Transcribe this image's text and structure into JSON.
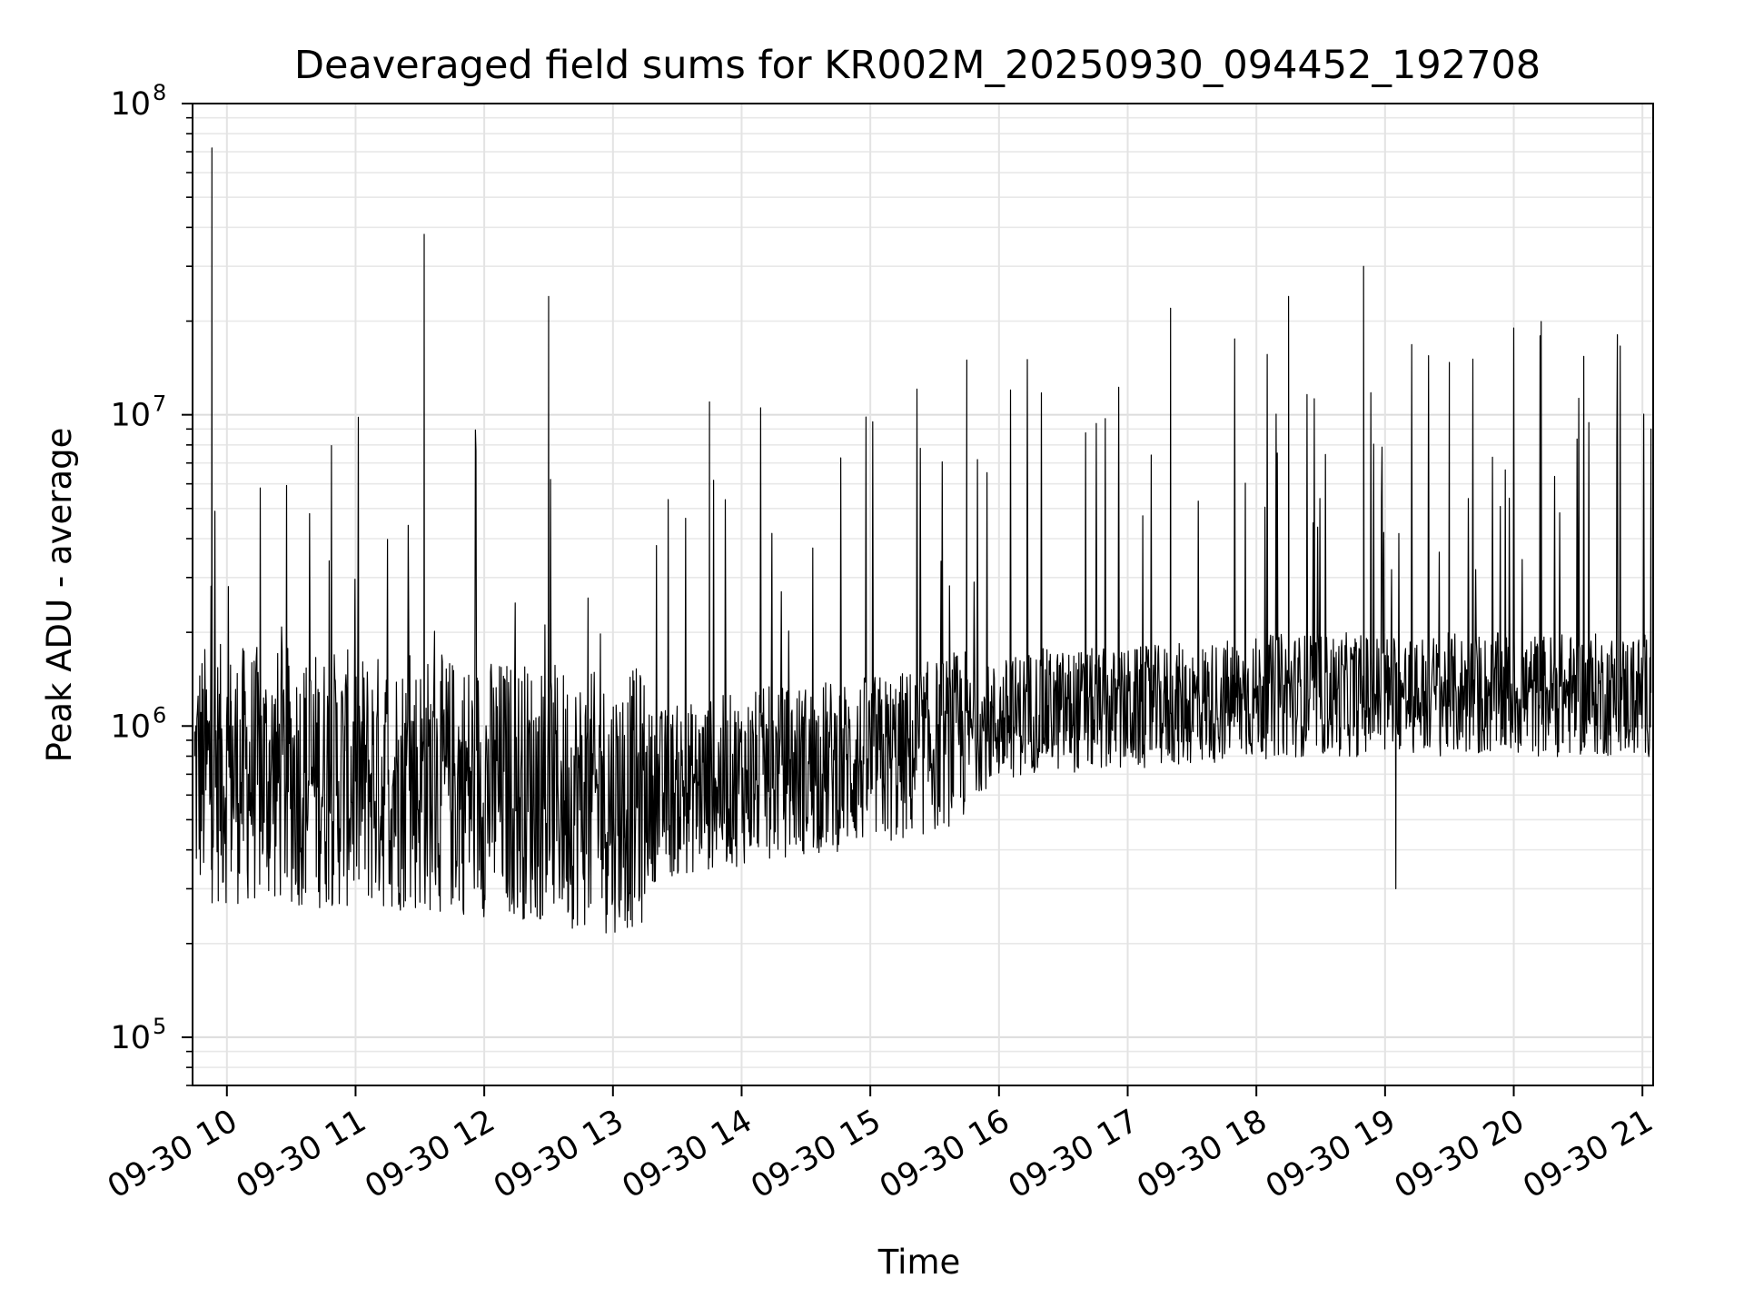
{
  "chart_data": {
    "type": "line",
    "title": "Deaveraged field sums for KR002M_20250930_094452_192708",
    "xlabel": "Time",
    "ylabel": "Peak ADU - average",
    "yscale": "log",
    "xlim": [
      "2025-09-30 09:44",
      "2025-09-30 21:05"
    ],
    "ylim": [
      70000,
      100000000
    ],
    "grid": true,
    "line_color": "#000000",
    "x_tick_labels": [
      "09-30 10",
      "09-30 11",
      "09-30 12",
      "09-30 13",
      "09-30 14",
      "09-30 15",
      "09-30 16",
      "09-30 17",
      "09-30 18",
      "09-30 19",
      "09-30 20",
      "09-30 21"
    ],
    "y_tick_labels": [
      {
        "base": "10",
        "exp": "5",
        "value": 100000
      },
      {
        "base": "10",
        "exp": "6",
        "value": 1000000
      },
      {
        "base": "10",
        "exp": "7",
        "value": 10000000
      },
      {
        "base": "10",
        "exp": "8",
        "value": 100000000
      }
    ],
    "series": [
      {
        "x": [
          "2025-09-30 09:45",
          "2025-09-30 09:50",
          "2025-09-30 09:53",
          "2025-09-30 09:56",
          "2025-09-30 10:02",
          "2025-09-30 10:10",
          "2025-09-30 10:20",
          "2025-09-30 10:30",
          "2025-09-30 10:38",
          "2025-09-30 10:45",
          "2025-09-30 10:55",
          "2025-09-30 11:05",
          "2025-09-30 11:20",
          "2025-09-30 11:32",
          "2025-09-30 11:40",
          "2025-09-30 11:50",
          "2025-09-30 12:05",
          "2025-09-30 12:30",
          "2025-09-30 12:55",
          "2025-09-30 13:05",
          "2025-09-30 13:30",
          "2025-09-30 13:45",
          "2025-09-30 14:10",
          "2025-09-30 14:35",
          "2025-09-30 15:00",
          "2025-09-30 15:25",
          "2025-09-30 15:45",
          "2025-09-30 16:10",
          "2025-09-30 16:30",
          "2025-09-30 17:00",
          "2025-09-30 17:20",
          "2025-09-30 17:35",
          "2025-09-30 18:00",
          "2025-09-30 18:15",
          "2025-09-30 18:50",
          "2025-09-30 19:05",
          "2025-09-30 19:30",
          "2025-09-30 19:55",
          "2025-09-30 20:00",
          "2025-09-30 20:30",
          "2025-09-30 20:50",
          "2025-09-30 21:04"
        ],
        "y": [
          800000,
          1100000,
          72000000,
          900000,
          1200000,
          700000,
          900000,
          600000,
          650000,
          800000,
          1000000,
          700000,
          900000,
          38000000,
          700000,
          600000,
          900000,
          24000000,
          800000,
          600000,
          700000,
          11000000,
          700000,
          750000,
          900000,
          800000,
          15000000,
          1100000,
          1000000,
          1200000,
          22000000,
          1200000,
          1100000,
          24000000,
          30000000,
          300000,
          1200000,
          1300000,
          19000000,
          1200000,
          1200000,
          9000000
        ]
      }
    ]
  }
}
